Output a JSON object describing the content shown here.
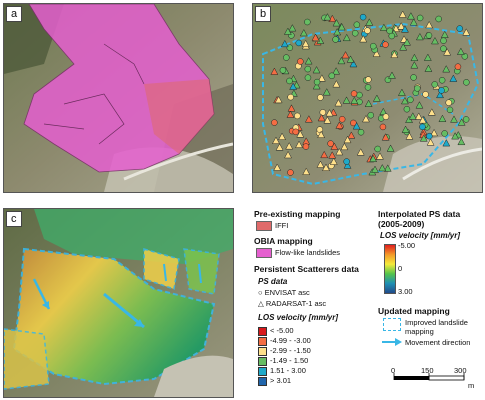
{
  "panels": [
    {
      "label": "a"
    },
    {
      "label": "b"
    },
    {
      "label": "c"
    }
  ],
  "legend_mapping": {
    "pre_title": "Pre-existing mapping",
    "iffi_label": "IFFI",
    "iffi_color": "#e06a6a",
    "obia_title": "OBIA mapping",
    "flow_label": "Flow-like landslides",
    "flow_color": "#e55fcf"
  },
  "legend_ps": {
    "title": "Persistent Scatterers data",
    "ps_data_title": "PS data",
    "envisat": "ENVISAT asc",
    "radarsat": "RADARSAT-1 asc",
    "velocity_title": "LOS velocity [mm/yr]",
    "classes": [
      {
        "label": "< -5.00",
        "color": "#d7191c"
      },
      {
        "label": "-4.99 - -3.00",
        "color": "#f46d43"
      },
      {
        "label": "-2.99 - -1.50",
        "color": "#fee08b"
      },
      {
        "label": "-1.49 - 1.50",
        "color": "#66bd63"
      },
      {
        "label": "1.51 - 3.00",
        "color": "#1fa9c9"
      },
      {
        "label": "> 3.01",
        "color": "#2166ac"
      }
    ]
  },
  "legend_interp": {
    "title_line1": "Interpolated PS data",
    "title_line2": "(2005-2009)",
    "velocity_title": "LOS velocity [mm/yr]",
    "max_label": "-5.00",
    "mid_label": "0",
    "min_label": "3.00"
  },
  "legend_updated": {
    "title": "Updated mapping",
    "improved_line1": "Improved landslide",
    "improved_line2": "mapping",
    "movement": "Movement direction",
    "outline_color": "#39b7e6"
  },
  "scale": {
    "ticks": [
      "0",
      "150",
      "300"
    ],
    "unit": "m"
  }
}
